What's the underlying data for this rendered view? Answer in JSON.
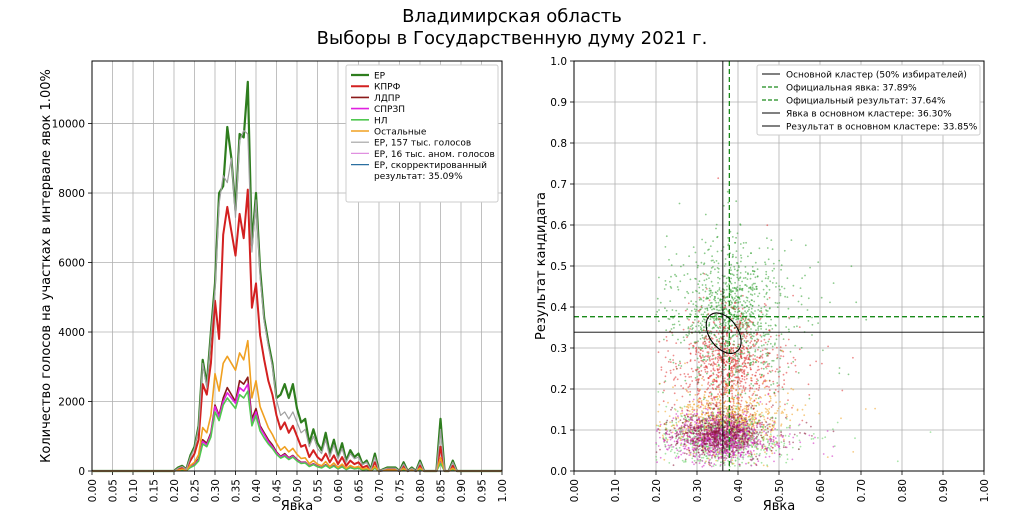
{
  "header": {
    "title": "Владимирская область",
    "subtitle": "Выборы в Государственную думу 2021 г."
  },
  "chart_data": [
    {
      "type": "line",
      "xlabel": "Явка",
      "ylabel": "Количество голосов на участках в интервале явок 1.00%",
      "xlim": [
        0,
        1
      ],
      "ylim": [
        0,
        11800
      ],
      "grid": true,
      "legend_position": "top-right",
      "xticks": [
        "0.00",
        "0.05",
        "0.10",
        "0.15",
        "0.20",
        "0.25",
        "0.30",
        "0.35",
        "0.40",
        "0.45",
        "0.50",
        "0.55",
        "0.60",
        "0.65",
        "0.70",
        "0.75",
        "0.80",
        "0.85",
        "0.90",
        "0.95",
        "1.00"
      ],
      "yticks": [
        "0",
        "2000",
        "4000",
        "6000",
        "8000",
        "10000"
      ],
      "x": [
        0.0,
        0.05,
        0.1,
        0.15,
        0.2,
        0.21,
        0.22,
        0.23,
        0.24,
        0.25,
        0.26,
        0.27,
        0.28,
        0.29,
        0.3,
        0.31,
        0.32,
        0.33,
        0.34,
        0.35,
        0.36,
        0.37,
        0.38,
        0.39,
        0.4,
        0.41,
        0.42,
        0.43,
        0.44,
        0.45,
        0.46,
        0.47,
        0.48,
        0.49,
        0.5,
        0.51,
        0.52,
        0.53,
        0.54,
        0.55,
        0.56,
        0.57,
        0.58,
        0.59,
        0.6,
        0.61,
        0.62,
        0.63,
        0.64,
        0.65,
        0.66,
        0.67,
        0.68,
        0.69,
        0.7,
        0.71,
        0.72,
        0.73,
        0.74,
        0.75,
        0.76,
        0.77,
        0.78,
        0.79,
        0.8,
        0.81,
        0.82,
        0.83,
        0.84,
        0.85,
        0.86,
        0.87,
        0.88,
        0.89,
        0.9,
        0.95,
        1.0
      ],
      "series": [
        {
          "name": "ЕР",
          "color": "#2e7d1e",
          "width": 2.2,
          "values": [
            0,
            0,
            0,
            0,
            0,
            100,
            150,
            50,
            450,
            700,
            1300,
            3200,
            2500,
            4000,
            5400,
            8000,
            8200,
            9900,
            9000,
            7500,
            9700,
            9600,
            11200,
            6500,
            8000,
            5800,
            4400,
            3700,
            3100,
            2100,
            2200,
            2500,
            2100,
            2500,
            1800,
            1400,
            1500,
            800,
            1200,
            800,
            600,
            1100,
            500,
            900,
            400,
            800,
            300,
            600,
            400,
            500,
            200,
            300,
            50,
            500,
            0,
            50,
            100,
            100,
            100,
            0,
            250,
            0,
            100,
            0,
            300,
            0,
            0,
            0,
            0,
            1500,
            0,
            0,
            300,
            0,
            0,
            0,
            0
          ]
        },
        {
          "name": "КПРФ",
          "color": "#d32020",
          "width": 2,
          "values": [
            0,
            0,
            0,
            0,
            0,
            50,
            100,
            50,
            300,
            500,
            900,
            2500,
            2200,
            3100,
            4900,
            3800,
            6800,
            7600,
            6900,
            6200,
            7400,
            6700,
            8100,
            4700,
            5400,
            3900,
            3200,
            2600,
            2200,
            1600,
            1200,
            1400,
            1100,
            1300,
            1000,
            700,
            750,
            400,
            600,
            400,
            300,
            500,
            250,
            450,
            200,
            400,
            150,
            300,
            200,
            250,
            100,
            150,
            30,
            250,
            0,
            30,
            50,
            50,
            50,
            0,
            150,
            0,
            50,
            0,
            150,
            0,
            0,
            0,
            0,
            700,
            0,
            0,
            150,
            0,
            0,
            0,
            0
          ]
        },
        {
          "name": "ЛДПР",
          "color": "#8b1a1a",
          "width": 1.6,
          "values": [
            0,
            0,
            0,
            0,
            0,
            20,
            40,
            20,
            120,
            200,
            350,
            900,
            800,
            1100,
            1900,
            1600,
            2100,
            2400,
            2200,
            2000,
            2600,
            2500,
            2700,
            1500,
            1800,
            1300,
            1100,
            900,
            750,
            550,
            420,
            500,
            380,
            450,
            330,
            250,
            260,
            150,
            210,
            140,
            100,
            180,
            90,
            160,
            70,
            140,
            50,
            110,
            70,
            90,
            40,
            55,
            10,
            90,
            0,
            10,
            20,
            20,
            20,
            0,
            50,
            0,
            20,
            0,
            60,
            0,
            0,
            0,
            0,
            250,
            0,
            0,
            55,
            0,
            0,
            0,
            0
          ]
        },
        {
          "name": "СПРЗП",
          "color": "#e020e0",
          "width": 1.6,
          "values": [
            0,
            0,
            0,
            0,
            0,
            20,
            40,
            20,
            110,
            180,
            320,
            850,
            750,
            1050,
            1850,
            1550,
            2000,
            2250,
            2100,
            1950,
            2400,
            2300,
            2500,
            1400,
            1700,
            1250,
            1050,
            850,
            700,
            520,
            400,
            470,
            360,
            430,
            310,
            240,
            250,
            140,
            200,
            130,
            95,
            170,
            85,
            150,
            65,
            130,
            48,
            105,
            65,
            85,
            38,
            52,
            10,
            85,
            0,
            10,
            18,
            18,
            18,
            0,
            48,
            0,
            18,
            0,
            55,
            0,
            0,
            0,
            0,
            240,
            0,
            0,
            50,
            0,
            0,
            0,
            0
          ]
        },
        {
          "name": "НЛ",
          "color": "#50c850",
          "width": 1.6,
          "values": [
            0,
            0,
            0,
            0,
            0,
            15,
            35,
            15,
            100,
            160,
            290,
            780,
            700,
            980,
            1700,
            1450,
            1900,
            2100,
            1950,
            1800,
            2200,
            2100,
            2300,
            1300,
            1600,
            1150,
            950,
            780,
            650,
            480,
            370,
            430,
            330,
            400,
            290,
            220,
            230,
            130,
            185,
            120,
            88,
            160,
            80,
            140,
            60,
            120,
            44,
            98,
            60,
            80,
            35,
            48,
            8,
            80,
            0,
            8,
            16,
            16,
            16,
            0,
            44,
            0,
            16,
            0,
            50,
            0,
            0,
            0,
            0,
            220,
            0,
            0,
            46,
            0,
            0,
            0,
            0
          ]
        },
        {
          "name": "Остальные",
          "color": "#f0a020",
          "width": 1.6,
          "values": [
            0,
            0,
            0,
            0,
            0,
            25,
            55,
            25,
            160,
            250,
            470,
            1250,
            1100,
            1600,
            2800,
            2300,
            3100,
            3300,
            3100,
            2900,
            3400,
            3200,
            3750,
            2100,
            2600,
            1850,
            1550,
            1250,
            1050,
            800,
            600,
            700,
            550,
            650,
            480,
            360,
            380,
            210,
            300,
            200,
            150,
            270,
            130,
            230,
            100,
            200,
            75,
            160,
            100,
            130,
            55,
            80,
            15,
            130,
            0,
            15,
            28,
            28,
            28,
            0,
            75,
            0,
            28,
            0,
            85,
            0,
            0,
            0,
            0,
            380,
            0,
            0,
            80,
            0,
            0,
            0,
            0
          ]
        },
        {
          "name": "ЕР, 157 тыс. голосов",
          "color": "#a0a0a0",
          "width": 1.2,
          "values": [
            0,
            0,
            0,
            0,
            0,
            80,
            130,
            40,
            400,
            650,
            1250,
            3100,
            2400,
            3900,
            5200,
            7700,
            8500,
            8300,
            9000,
            7300,
            9500,
            9800,
            9700,
            6300,
            7800,
            5600,
            4300,
            3600,
            3000,
            2050,
            1600,
            1700,
            1500,
            1700,
            1400,
            1100,
            1200,
            700,
            1000,
            650,
            500,
            900,
            400,
            750,
            350,
            650,
            250,
            500,
            350,
            400,
            180,
            250,
            40,
            400,
            0,
            40,
            80,
            80,
            80,
            0,
            200,
            0,
            80,
            0,
            250,
            0,
            0,
            0,
            0,
            1200,
            0,
            0,
            250,
            0,
            0,
            0,
            0
          ]
        },
        {
          "name": "ЕР, 16 тыс. аном. голосов",
          "color": "#e090e0",
          "width": 1.2,
          "values": [
            0,
            0,
            0,
            0,
            0,
            0,
            0,
            0,
            0,
            0,
            0,
            0,
            0,
            0,
            0,
            0,
            0,
            0,
            0,
            0,
            0,
            0,
            0,
            0,
            0,
            0,
            0,
            0,
            0,
            0,
            0,
            0,
            0,
            0,
            0,
            0,
            0,
            0,
            0,
            0,
            0,
            0,
            0,
            0,
            0,
            0,
            0,
            0,
            0,
            0,
            0,
            0,
            0,
            0,
            0,
            0,
            0,
            0,
            0,
            0,
            0,
            0,
            0,
            0,
            0,
            0,
            0,
            0,
            0,
            0,
            0,
            0,
            0,
            0,
            0,
            0,
            0
          ]
        },
        {
          "name": "ЕР, скорректированный результат: 35.09%",
          "color": "#2a6fa0",
          "width": 1.2,
          "values": [
            0,
            0,
            0,
            0,
            0,
            0,
            0,
            0,
            0,
            0,
            0,
            0,
            0,
            0,
            0,
            0,
            0,
            0,
            0,
            0,
            0,
            0,
            0,
            0,
            0,
            0,
            0,
            0,
            0,
            0,
            0,
            0,
            0,
            0,
            0,
            0,
            0,
            0,
            0,
            0,
            0,
            0,
            0,
            0,
            0,
            0,
            0,
            0,
            0,
            0,
            0,
            0,
            0,
            0,
            0,
            0,
            0,
            0,
            0,
            0,
            0,
            0,
            0,
            0,
            0,
            0,
            0,
            0,
            0,
            0,
            0,
            0,
            0,
            0,
            0,
            0,
            0
          ]
        }
      ]
    },
    {
      "type": "scatter",
      "xlabel": "Явка",
      "ylabel": "Результат кандидата",
      "xlim": [
        0,
        1
      ],
      "ylim": [
        0,
        1
      ],
      "grid": true,
      "legend_position": "top-right",
      "xticks": [
        "0.00",
        "0.10",
        "0.20",
        "0.30",
        "0.40",
        "0.50",
        "0.60",
        "0.70",
        "0.80",
        "0.90",
        "1.00"
      ],
      "yticks": [
        "0.0",
        "0.1",
        "0.2",
        "0.3",
        "0.4",
        "0.5",
        "0.6",
        "0.7",
        "0.8",
        "0.9",
        "1.0"
      ],
      "point_clouds": [
        {
          "party": "ЕР",
          "color": "#2e9e2e",
          "center": [
            0.38,
            0.38
          ],
          "spread": [
            0.06,
            0.08
          ],
          "count": 1100
        },
        {
          "party": "КПРФ",
          "color": "#e03030",
          "center": [
            0.38,
            0.26
          ],
          "spread": [
            0.055,
            0.06
          ],
          "count": 900
        },
        {
          "party": "Остальные",
          "color": "#f0a020",
          "center": [
            0.37,
            0.12
          ],
          "spread": [
            0.06,
            0.035
          ],
          "count": 800
        },
        {
          "party": "НЛ",
          "color": "#60d060",
          "center": [
            0.37,
            0.08
          ],
          "spread": [
            0.06,
            0.03
          ],
          "count": 700
        },
        {
          "party": "СПРЗП",
          "color": "#d020c0",
          "center": [
            0.36,
            0.08
          ],
          "spread": [
            0.05,
            0.025
          ],
          "count": 900
        },
        {
          "party": "ЛДПР",
          "color": "#8b1a3a",
          "center": [
            0.36,
            0.09
          ],
          "spread": [
            0.05,
            0.025
          ],
          "count": 700
        }
      ],
      "cluster_ellipse": {
        "center": [
          0.365,
          0.336
        ],
        "radius": [
          0.035,
          0.055
        ]
      },
      "reference_lines": [
        {
          "label": "Основной кластер (50% избирателей)",
          "color": "#000000",
          "style": "solid",
          "kind": "ellipse"
        },
        {
          "label": "Официальная явка: 37.89%",
          "color": "#1a8a1a",
          "style": "dashed",
          "orientation": "vertical",
          "value": 0.3789
        },
        {
          "label": "Официальный результат: 37.64%",
          "color": "#1a8a1a",
          "style": "dashed",
          "orientation": "horizontal",
          "value": 0.3764
        },
        {
          "label": "Явка в основном кластере: 36.30%",
          "color": "#000000",
          "style": "solid",
          "orientation": "vertical",
          "value": 0.363
        },
        {
          "label": "Результат в основном кластере: 33.85%",
          "color": "#000000",
          "style": "solid",
          "orientation": "horizontal",
          "value": 0.3385
        }
      ]
    }
  ]
}
